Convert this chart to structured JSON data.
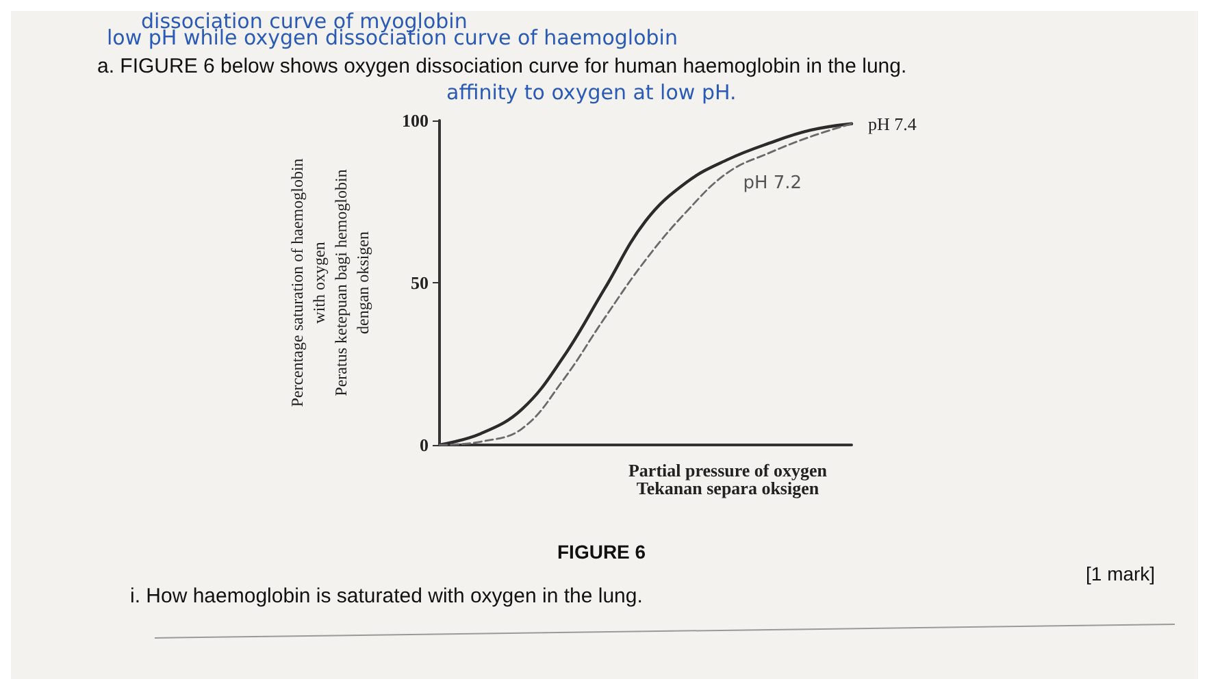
{
  "chart_data": {
    "type": "line",
    "title": "a. FIGURE 6 below shows oxygen dissociation curve for human haemoglobin in the lung.",
    "xlabel": "Partial pressure of oxygen\nTekanan separa oksigen",
    "ylabel": "Percentage saturation of haemoglobin\nwith oxygen\nPeratus ketepuan bagi hemoglobin\ndengan oksigen",
    "categories": [
      null,
      null,
      null,
      null,
      null,
      null,
      null,
      null,
      null,
      null,
      null
    ],
    "series": [
      {
        "name": "pH 7.4",
        "color": "#2b2b2b",
        "line_style": "solid",
        "values": [
          0,
          3.5,
          11,
          27,
          48,
          69,
          81,
          88,
          93,
          97,
          99
        ]
      },
      {
        "name": "pH 7.2",
        "color": "#6a6a6a",
        "line_style": "dashed",
        "values": [
          0,
          1,
          5,
          20,
          39,
          57,
          72,
          84,
          90,
          95,
          99
        ]
      }
    ],
    "ylim": [
      0,
      100
    ],
    "yticks": [
      0,
      50,
      100
    ],
    "grid": false,
    "legend": false,
    "marker": "none",
    "annotations": [
      "dissociation curve of myoglobin",
      "low pH while oxygen dissociation curve of haemoglobin",
      "affinity to oxygen at low pH.",
      "FIGURE 6",
      "[1 mark]",
      "i. How haemoglobin is saturated with oxygen in the lung."
    ]
  }
}
